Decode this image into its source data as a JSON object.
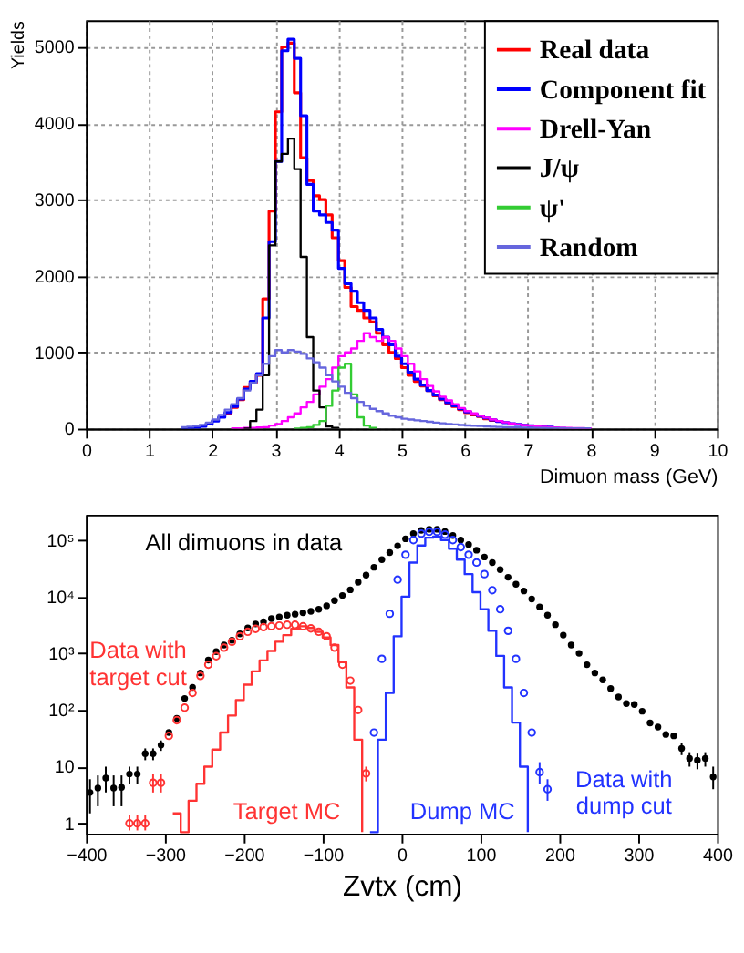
{
  "chart_data": [
    {
      "type": "step",
      "xlabel": "Dimuon mass (GeV)",
      "ylabel": "Yields",
      "xlim": [
        0,
        10
      ],
      "ylim": [
        0,
        5350
      ],
      "xticks": [
        0,
        1,
        2,
        3,
        4,
        5,
        6,
        7,
        8,
        9,
        10
      ],
      "yticks": [
        0,
        1000,
        2000,
        3000,
        4000,
        5000
      ],
      "grid": true,
      "legend": "top right",
      "x": [
        1.5,
        1.6,
        1.7,
        1.8,
        1.9,
        2.0,
        2.1,
        2.2,
        2.3,
        2.4,
        2.5,
        2.6,
        2.7,
        2.8,
        2.9,
        3.0,
        3.1,
        3.2,
        3.3,
        3.4,
        3.5,
        3.6,
        3.7,
        3.8,
        3.9,
        4.0,
        4.1,
        4.2,
        4.3,
        4.4,
        4.5,
        4.6,
        4.7,
        4.8,
        4.9,
        5.0,
        5.1,
        5.2,
        5.3,
        5.4,
        5.5,
        5.6,
        5.7,
        5.8,
        5.9,
        6.0,
        6.1,
        6.2,
        6.3,
        6.4,
        6.5,
        6.6,
        6.7,
        6.8,
        6.9,
        7.0,
        7.1,
        7.2,
        7.3,
        7.4,
        7.5,
        7.6,
        7.7,
        7.8,
        7.9,
        8.0
      ],
      "series": [
        {
          "name": "Real data",
          "color": "#ff0000",
          "values": [
            null,
            null,
            null,
            null,
            null,
            null,
            null,
            200,
            280,
            380,
            540,
            600,
            700,
            1700,
            2850,
            4150,
            5000,
            5050,
            4400,
            3550,
            3250,
            3050,
            3000,
            2800,
            2500,
            2200,
            1850,
            1600,
            1550,
            1450,
            1400,
            1250,
            1100,
            1000,
            920,
            800,
            700,
            620,
            560,
            500,
            430,
            380,
            330,
            290,
            250,
            210,
            180,
            160,
            130,
            110,
            90,
            null,
            null,
            null,
            null,
            null,
            null,
            null,
            null,
            null,
            null,
            null,
            null,
            null,
            null,
            null
          ]
        },
        {
          "name": "Component fit",
          "color": "#0000ff",
          "values": [
            5,
            10,
            15,
            30,
            60,
            100,
            150,
            210,
            290,
            390,
            520,
            620,
            720,
            1450,
            2450,
            3500,
            4950,
            5100,
            4850,
            4100,
            3200,
            2850,
            2800,
            2700,
            2600,
            2100,
            1900,
            1800,
            1650,
            1550,
            1450,
            1300,
            1200,
            1100,
            950,
            850,
            740,
            650,
            570,
            500,
            440,
            390,
            340,
            300,
            260,
            220,
            190,
            165,
            140,
            115,
            95,
            80,
            65,
            55,
            45,
            38,
            32,
            26,
            21,
            17,
            null,
            null,
            null,
            null,
            null,
            null
          ]
        },
        {
          "name": "Drell-Yan",
          "color": "#ff00ff",
          "values": [
            null,
            null,
            null,
            null,
            null,
            null,
            null,
            null,
            5,
            5,
            10,
            10,
            15,
            20,
            40,
            60,
            100,
            150,
            200,
            280,
            350,
            450,
            550,
            650,
            800,
            950,
            1000,
            1050,
            1150,
            1250,
            1200,
            1150,
            1200,
            1150,
            1050,
            950,
            850,
            750,
            650,
            560,
            490,
            420,
            370,
            320,
            270,
            230,
            200,
            170,
            145,
            120,
            100,
            82,
            66,
            55,
            45,
            38,
            31,
            25,
            20,
            16,
            12,
            10,
            8,
            6,
            5,
            4
          ]
        },
        {
          "name": "J/ψ",
          "color": "#000000",
          "values": [
            null,
            null,
            null,
            null,
            null,
            null,
            null,
            null,
            null,
            null,
            0,
            100,
            250,
            700,
            2400,
            3500,
            3600,
            3800,
            3400,
            2250,
            1200,
            500,
            280,
            30,
            10,
            0,
            null,
            null,
            null,
            null,
            null,
            null,
            null,
            null,
            null,
            null,
            null,
            null,
            null,
            null,
            null,
            null,
            null,
            null,
            null,
            null,
            null,
            null,
            null,
            null,
            null,
            null,
            null,
            null,
            null,
            null,
            null,
            null,
            null,
            null,
            null,
            null,
            null,
            null,
            null,
            null
          ]
        },
        {
          "name": "ψ'",
          "color": "#33cc33",
          "values": [
            null,
            null,
            null,
            null,
            null,
            null,
            null,
            null,
            null,
            null,
            null,
            null,
            null,
            null,
            null,
            null,
            null,
            null,
            0,
            10,
            20,
            50,
            100,
            300,
            500,
            800,
            850,
            450,
            150,
            40,
            10,
            0,
            null,
            null,
            null,
            null,
            null,
            null,
            null,
            null,
            null,
            null,
            null,
            null,
            null,
            null,
            null,
            null,
            null,
            null,
            null,
            null,
            null,
            null,
            null,
            null,
            null,
            null,
            null,
            null,
            null,
            null,
            null,
            null,
            null,
            null
          ]
        },
        {
          "name": "Random",
          "color": "#6666dd",
          "values": [
            20,
            25,
            35,
            50,
            80,
            120,
            180,
            250,
            320,
            400,
            500,
            600,
            700,
            850,
            950,
            1030,
            1000,
            1030,
            1010,
            980,
            920,
            870,
            800,
            700,
            620,
            550,
            470,
            400,
            350,
            300,
            260,
            230,
            200,
            170,
            150,
            130,
            120,
            110,
            100,
            90,
            80,
            70,
            62,
            55,
            48,
            42,
            38,
            34,
            30,
            26,
            22,
            20,
            18,
            16,
            14,
            12,
            10,
            9,
            8,
            7,
            6,
            5,
            4,
            4,
            3,
            3
          ]
        }
      ]
    },
    {
      "type": "scatter",
      "xlabel": "Zvtx (cm)",
      "xlim": [
        -400,
        400
      ],
      "ylim": [
        0.66,
        280000
      ],
      "log": true,
      "legend": false,
      "grid": false,
      "xticks": [
        -400,
        -300,
        -200,
        -100,
        0,
        100,
        200,
        300,
        400
      ],
      "yticks": [
        1,
        10,
        {
          "value": 100,
          "label": "10²"
        },
        {
          "value": 1000,
          "label": "10³"
        },
        {
          "value": 10000,
          "label": "10⁴"
        },
        {
          "value": 100000,
          "label": "10⁵"
        }
      ],
      "series": [
        {
          "name": "All dimuons in data",
          "color": "#000000",
          "type": "scatter",
          "marker": "circle",
          "x": [
            -395,
            -385,
            -375,
            -365,
            -355,
            -345,
            -335,
            -325,
            -315,
            -305,
            -295,
            -285,
            -275,
            -265,
            -255,
            -245,
            -235,
            -225,
            -215,
            -205,
            -195,
            -185,
            -175,
            -165,
            -155,
            -145,
            -135,
            -125,
            -115,
            -105,
            -95,
            -85,
            -75,
            -65,
            -55,
            -45,
            -35,
            -25,
            -15,
            -5,
            5,
            15,
            25,
            35,
            45,
            55,
            65,
            75,
            85,
            95,
            105,
            115,
            125,
            135,
            145,
            155,
            165,
            175,
            185,
            195,
            205,
            215,
            225,
            235,
            245,
            255,
            265,
            275,
            285,
            295,
            305,
            315,
            325,
            335,
            345,
            355,
            365,
            375,
            385,
            395
          ],
          "values": [
            3.5,
            4.2,
            6.3,
            4.2,
            4.3,
            7.4,
            7.4,
            17,
            17,
            24,
            40,
            71,
            160,
            250,
            450,
            760,
            1070,
            1400,
            1700,
            2200,
            2800,
            3300,
            3600,
            4100,
            4400,
            4700,
            4900,
            5200,
            5500,
            6000,
            6900,
            8500,
            10500,
            13200,
            18000,
            24000,
            33000,
            45000,
            60000,
            79000,
            105000,
            130000,
            148000,
            155000,
            155000,
            141000,
            120000,
            100000,
            83000,
            66000,
            50000,
            40000,
            30000,
            22000,
            16600,
            12600,
            9100,
            6600,
            4700,
            3200,
            2100,
            1400,
            1000,
            630,
            450,
            340,
            240,
            170,
            130,
            125,
            95,
            59,
            50,
            37,
            35,
            21,
            14,
            13,
            14,
            6.6
          ],
          "errors": [
            [
              1.5,
              6
            ],
            [
              2,
              7
            ],
            [
              3.5,
              10
            ],
            [
              2,
              7
            ],
            [
              2,
              7
            ],
            [
              5,
              10
            ],
            [
              5,
              10
            ],
            [
              13,
              21
            ],
            [
              13,
              21
            ],
            [
              19,
              29
            ],
            null,
            null,
            null,
            null,
            null,
            null,
            null,
            null,
            null,
            null,
            null,
            null,
            null,
            null,
            null,
            null,
            null,
            null,
            null,
            null,
            null,
            null,
            null,
            null,
            null,
            null,
            null,
            null,
            null,
            null,
            null,
            null,
            null,
            null,
            null,
            null,
            null,
            null,
            null,
            null,
            null,
            null,
            null,
            null,
            null,
            null,
            null,
            null,
            null,
            null,
            null,
            null,
            null,
            null,
            null,
            null,
            null,
            null,
            null,
            null,
            null,
            null,
            null,
            null,
            null,
            [
              16,
              26
            ],
            [
              10,
              18
            ],
            [
              9,
              17
            ],
            [
              10,
              18
            ],
            [
              4,
              10
            ]
          ]
        },
        {
          "name": "Data with target cut",
          "color": "#ff3333",
          "type": "scatter",
          "marker": "circle",
          "x": [
            -345,
            -335,
            -325,
            -315,
            -305,
            -295,
            -285,
            -275,
            -265,
            -255,
            -245,
            -235,
            -225,
            -215,
            -205,
            -195,
            -185,
            -175,
            -165,
            -155,
            -145,
            -135,
            -125,
            -115,
            -105,
            -95,
            -85,
            -75,
            -65,
            -55,
            -45
          ],
          "values": [
            1,
            1,
            1,
            5.2,
            5.2,
            35,
            66,
            110,
            200,
            400,
            630,
            890,
            1260,
            1600,
            2000,
            2400,
            2700,
            2900,
            3000,
            3100,
            3200,
            3200,
            3000,
            2750,
            2400,
            2000,
            1260,
            630,
            330,
            100,
            7.6
          ],
          "errors": [
            [
              0.75,
              1.4
            ],
            [
              0.75,
              1.4
            ],
            [
              0.75,
              1.4
            ],
            [
              3.5,
              7.5
            ],
            [
              3.5,
              7.5
            ],
            null,
            null,
            null,
            null,
            null,
            null,
            null,
            null,
            null,
            null,
            null,
            null,
            null,
            null,
            null,
            null,
            null,
            null,
            null,
            null,
            null,
            null,
            null,
            null,
            null,
            [
              5.5,
              10
            ]
          ]
        },
        {
          "name": "Target MC",
          "color": "#ff3333",
          "type": "step",
          "x": [
            -290,
            -280,
            -270,
            -260,
            -250,
            -240,
            -230,
            -220,
            -210,
            -200,
            -190,
            -180,
            -170,
            -160,
            -150,
            -140,
            -130,
            -120,
            -110,
            -100,
            -90,
            -80,
            -70,
            -60,
            -50
          ],
          "values": [
            1.5,
            0.7,
            2.5,
            5,
            10,
            20,
            40,
            80,
            150,
            280,
            480,
            750,
            1100,
            1600,
            2100,
            2700,
            3000,
            2800,
            2400,
            1900,
            1400,
            700,
            250,
            30,
            0.7
          ]
        },
        {
          "name": "Dump MC",
          "color": "#2233ff",
          "type": "step",
          "x": [
            -40,
            -30,
            -20,
            -10,
            0,
            10,
            20,
            30,
            40,
            50,
            60,
            70,
            80,
            90,
            100,
            110,
            120,
            130,
            140,
            150,
            160
          ],
          "values": [
            0.7,
            30,
            200,
            2000,
            10000,
            40000,
            80000,
            110000,
            115000,
            100000,
            70000,
            45000,
            25000,
            12000,
            6000,
            2500,
            900,
            250,
            60,
            10,
            0.7
          ]
        },
        {
          "name": "Data with dump cut",
          "color": "#2233ff",
          "type": "scatter",
          "marker": "circle",
          "x": [
            -35,
            -25,
            -15,
            -5,
            5,
            15,
            25,
            35,
            45,
            55,
            65,
            75,
            85,
            95,
            105,
            115,
            125,
            135,
            145,
            155,
            165,
            175,
            185
          ],
          "values": [
            40,
            800,
            5000,
            20000,
            55000,
            100000,
            130000,
            140000,
            140000,
            125000,
            100000,
            75000,
            55000,
            40000,
            25000,
            13000,
            6000,
            2500,
            800,
            200,
            40,
            8,
            4
          ],
          "errors": [
            null,
            null,
            null,
            null,
            null,
            null,
            null,
            null,
            null,
            null,
            null,
            null,
            null,
            null,
            null,
            null,
            null,
            null,
            null,
            null,
            null,
            [
              5,
              12
            ],
            [
              2.5,
              6
            ]
          ]
        }
      ]
    }
  ]
}
